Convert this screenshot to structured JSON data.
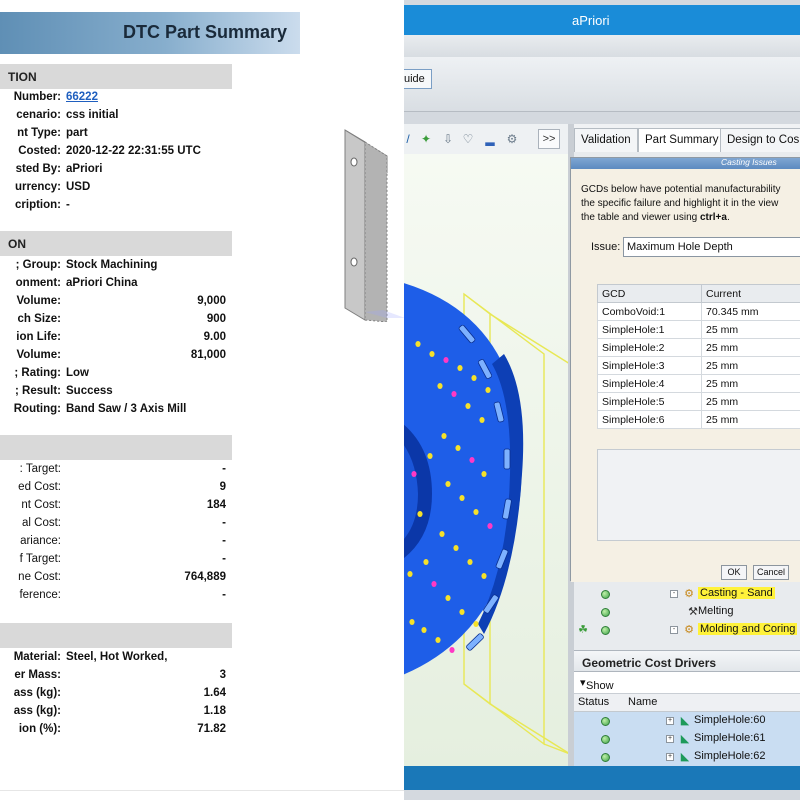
{
  "report": {
    "title": "DTC Part Summary",
    "sections": {
      "information": "TION",
      "production": "ON",
      "cost": "",
      "material": ""
    },
    "info_rows": [
      {
        "label": "Number:",
        "value": "66222",
        "link": true
      },
      {
        "label": "cenario:",
        "value": "css initial"
      },
      {
        "label": "nt Type:",
        "value": "part"
      },
      {
        "label": "Costed:",
        "value": "2020-12-22 22:31:55 UTC"
      },
      {
        "label": "sted By:",
        "value": "aPriori"
      },
      {
        "label": "urrency:",
        "value": "USD"
      },
      {
        "label": "cription:",
        "value": "-"
      }
    ],
    "production_rows": [
      {
        "label": "; Group:",
        "value": "Stock Machining"
      },
      {
        "label": "onment:",
        "value": "aPriori China"
      },
      {
        "label": "Volume:",
        "num": "9,000"
      },
      {
        "label": "ch Size:",
        "num": "900"
      },
      {
        "label": "ion Life:",
        "num": "9.00"
      },
      {
        "label": "Volume:",
        "num": "81,000"
      },
      {
        "label": "; Rating:",
        "value": "Low"
      },
      {
        "label": "; Result:",
        "value": "Success"
      },
      {
        "label": "Routing:",
        "value": "Band Saw / 3 Axis Mill"
      }
    ],
    "cost_rows": [
      {
        "label": ": Target:",
        "num": "-"
      },
      {
        "label": "ed Cost:",
        "num": "9"
      },
      {
        "label": "nt Cost:",
        "num": "184"
      },
      {
        "label": "al Cost:",
        "num": "-"
      },
      {
        "label": "ariance:",
        "num": "-"
      },
      {
        "label": "f Target:",
        "num": "-"
      },
      {
        "label": "ne Cost:",
        "num": "764,889"
      },
      {
        "label": "ference:",
        "num": "-"
      }
    ],
    "material_rows": [
      {
        "label": "Material:",
        "value": "Steel, Hot Worked,"
      },
      {
        "label": "er Mass:",
        "num": "3"
      },
      {
        "label": "ass (kg):",
        "num": "1.64"
      },
      {
        "label": "ass (kg):",
        "num": "1.18"
      },
      {
        "label": "ion (%):",
        "num": "71.82"
      }
    ]
  },
  "app": {
    "title": "aPriori",
    "guide_button": "uide",
    "toolbar_more": ">>",
    "tabs": [
      "Validation",
      "Part Summary",
      "Design to Cos"
    ],
    "dialog": {
      "caption": "Casting Issues",
      "text_line1": "GCDs below have potential manufacturability",
      "text_line2": "the specific failure and highlight it in the view",
      "text_line3_pre": "the table and viewer using ",
      "text_line3_bold": "ctrl+a",
      "text_line3_post": ".",
      "issue_label": "Issue:",
      "issue_value": "Maximum Hole Depth",
      "columns": [
        "GCD",
        "Current"
      ],
      "rows": [
        [
          "ComboVoid:1",
          "70.345 mm"
        ],
        [
          "SimpleHole:1",
          "25 mm"
        ],
        [
          "SimpleHole:2",
          "25 mm"
        ],
        [
          "SimpleHole:3",
          "25 mm"
        ],
        [
          "SimpleHole:4",
          "25 mm"
        ],
        [
          "SimpleHole:5",
          "25 mm"
        ],
        [
          "SimpleHole:6",
          "25 mm"
        ]
      ],
      "ok_label": "OK",
      "cancel_label": "Cancel"
    },
    "process_tree": [
      {
        "label": "Casting - Sand",
        "highlight": true
      },
      {
        "label": "Melting",
        "highlight": false
      },
      {
        "label": "Molding and Coring",
        "highlight": true
      }
    ],
    "gcd_panel": {
      "title": "Geometric Cost Drivers",
      "show_label": "Show",
      "col_status": "Status",
      "col_name": "Name",
      "rows": [
        "SimpleHole:60",
        "SimpleHole:61",
        "SimpleHole:62"
      ]
    }
  },
  "colors": {
    "titlebar": "#1a8cd8",
    "part_blue": "#1565f0",
    "highlight": "#fff23a",
    "status_green": "#3fa34a"
  }
}
